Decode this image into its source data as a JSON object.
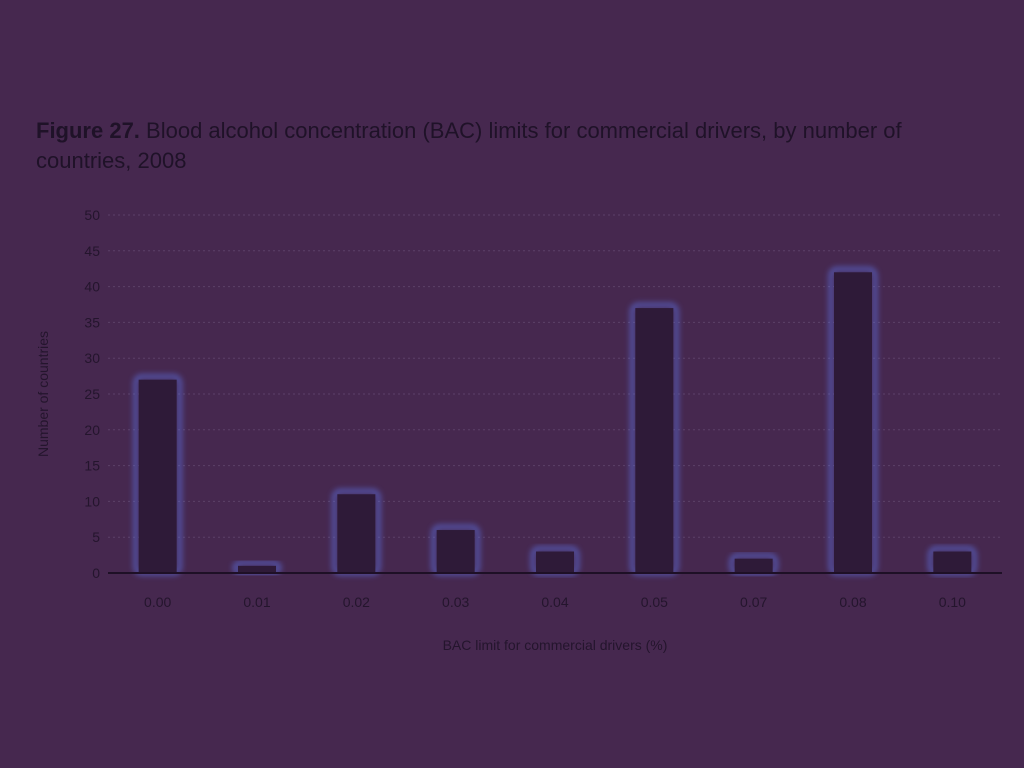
{
  "figure": {
    "label": "Figure 27.",
    "caption": " Blood alcohol concentration (BAC) limits for commercial drivers, by number of countries, 2008"
  },
  "colors": {
    "background": "#46284f",
    "bar": "#2e1a38",
    "bar_glow": "#5f78f0",
    "text": "#24152d",
    "axis": "#1e1026",
    "grid": "#5c4168"
  },
  "chart_data": {
    "type": "bar",
    "title": "Blood alcohol concentration (BAC) limits for commercial drivers, by number of countries, 2008",
    "categories": [
      "0.00",
      "0.01",
      "0.02",
      "0.03",
      "0.04",
      "0.05",
      "0.07",
      "0.08",
      "0.10"
    ],
    "values": [
      27,
      1,
      11,
      6,
      3,
      37,
      2,
      42,
      3
    ],
    "xlabel": "BAC limit for commercial drivers (%)",
    "ylabel": "Number of countries",
    "ylim": [
      0,
      50
    ],
    "yticks": [
      0,
      5,
      10,
      15,
      20,
      25,
      30,
      35,
      40,
      45,
      50
    ],
    "grid": true,
    "legend": "none"
  }
}
